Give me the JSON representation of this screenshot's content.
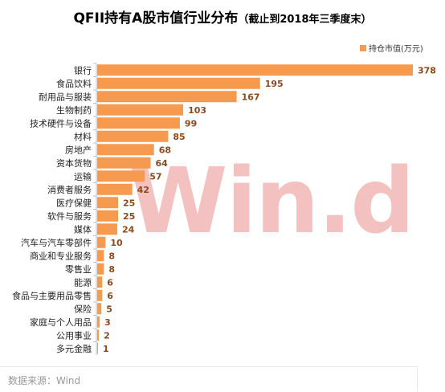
{
  "title": {
    "main": "QFII持有A股市值行业分布",
    "sub": "（截止到2018年三季度末）"
  },
  "legend": {
    "label": "持仓市值(万元)"
  },
  "watermark": "Win.d",
  "source": "数据来源：Wind",
  "chart_data": {
    "type": "bar",
    "orientation": "horizontal",
    "title": "QFII持有A股市值行业分布（截止到2018年三季度末）",
    "categories": [
      "银行",
      "食品饮料",
      "耐用品与服装",
      "生物制药",
      "技术硬件与设备",
      "材料",
      "房地产",
      "资本货物",
      "运输",
      "消费者服务",
      "医疗保健",
      "软件与服务",
      "媒体",
      "汽车与汽车零部件",
      "商业和专业服务",
      "零售业",
      "能源",
      "食品与主要用品零售",
      "保险",
      "家庭与个人用品",
      "公用事业",
      "多元金融"
    ],
    "series": [
      {
        "name": "持仓市值(万元)",
        "values": [
          378,
          195,
          167,
          103,
          99,
          85,
          68,
          64,
          57,
          42,
          25,
          25,
          24,
          10,
          8,
          8,
          6,
          6,
          5,
          3,
          2,
          1
        ]
      }
    ],
    "xlim": [
      0,
      378
    ],
    "grid": false,
    "legend_position": "top-right",
    "colors": {
      "bar": "#F59A4E",
      "label": "#8B4A1E"
    }
  }
}
